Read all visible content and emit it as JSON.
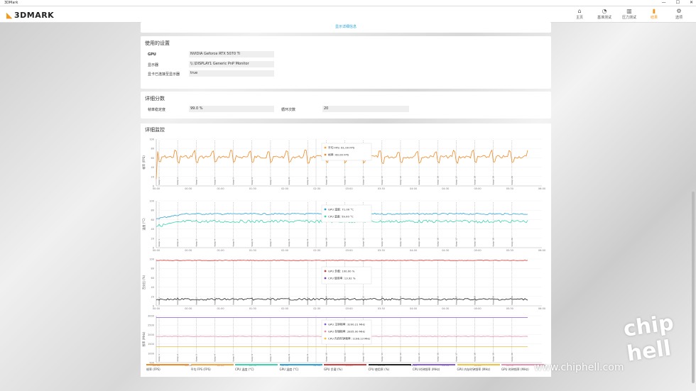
{
  "window": {
    "title": "3DMark",
    "controls": [
      "—",
      "☐",
      "✕"
    ]
  },
  "app": {
    "logo": "3DMARK"
  },
  "nav": {
    "items": [
      {
        "label": "主页",
        "icon": "home-icon",
        "glyph": "⌂"
      },
      {
        "label": "基准测试",
        "icon": "gauge-icon",
        "glyph": "◔"
      },
      {
        "label": "压力测试",
        "icon": "bars-icon",
        "glyph": "▥"
      },
      {
        "label": "结果",
        "icon": "results-icon",
        "glyph": "▮"
      },
      {
        "label": "选项",
        "icon": "gear-icon",
        "glyph": "⚙"
      }
    ],
    "active_index": 3
  },
  "detail_link": "显示详细信息",
  "settings": {
    "title": "使用的设置",
    "rows": [
      {
        "label": "GPU",
        "value": "NVIDIA Geforce RTX 5070 Ti"
      },
      {
        "label": "显示器",
        "value": "\\\\.\\DISPLAY1 Generic PnP Monitor"
      },
      {
        "label": "显卡已连接至显示器",
        "value": "true"
      }
    ]
  },
  "scores": {
    "title": "详细分数",
    "items": [
      {
        "label": "帧率稳定度",
        "value": "99.0 %"
      },
      {
        "label": "循环次数",
        "value": "20"
      }
    ]
  },
  "monitor": {
    "title": "详细监控",
    "charts": [
      {
        "ylabel": "帧率 (FPS)",
        "tooltip": [
          {
            "label": "平均 FPS:",
            "value": "61.00 FPS",
            "color": "#f5a33a"
          },
          {
            "label": "帧率:",
            "value": "60.00 FPS",
            "color": "#f08a24"
          }
        ],
        "yticks": [
          "100",
          "80",
          "60",
          "40",
          "20",
          "0"
        ]
      },
      {
        "ylabel": "温度 (°C)",
        "tooltip": [
          {
            "label": "GPU 温度:",
            "value": "71.00 °C",
            "color": "#2aa3d9"
          },
          {
            "label": "CPU 温度:",
            "value": "59.00 °C",
            "color": "#39d3b0"
          }
        ],
        "yticks": [
          "100",
          "80",
          "60",
          "40",
          "20",
          "0"
        ]
      },
      {
        "ylabel": "百分比 (%)",
        "tooltip": [
          {
            "label": "GPU 负载:",
            "value": "100.00 %",
            "color": "#d23b3b"
          },
          {
            "label": "CPU 使用率:",
            "value": "13.92 %",
            "color": "#7a3fb5"
          }
        ],
        "yticks": [
          "100",
          "80",
          "60",
          "40",
          "20",
          "0"
        ]
      },
      {
        "ylabel": "频率 (MHz)",
        "tooltip": [
          {
            "label": "GPU 主钟频率:",
            "value": "3200.21 MHz",
            "color": "#8a5ad6"
          },
          {
            "label": "GPU 存储频率:",
            "value": "2835.00 MHz",
            "color": "#e98fb0"
          },
          {
            "label": "CPU 内存时钟频率:",
            "value": "1198.13 MHz",
            "color": "#f0c040"
          }
        ],
        "yticks": [
          "3000",
          "2500",
          "2000",
          "1500",
          "1000",
          "500"
        ]
      }
    ],
    "xticks": [
      "00:00",
      "00:30",
      "01:00",
      "01:30",
      "02:00",
      "02:30",
      "03:00",
      "03:30",
      "04:00",
      "04:30",
      "05:00",
      "05:30",
      "06:00"
    ],
    "markers": [
      "Loop 1",
      "Loop 2",
      "Loop 3",
      "Loop 4",
      "Loop 5",
      "Loop 6",
      "Loop 7",
      "Loop 8",
      "Loop 9",
      "Loop 10",
      "Loop 11",
      "Loop 12",
      "Loop 13",
      "Loop 14",
      "Loop 15",
      "Loop 16",
      "Loop 17",
      "Loop 18",
      "Loop 19",
      "Loop 20"
    ]
  },
  "legend": [
    {
      "label": "帧率 (FPS)",
      "color": "#f08a24"
    },
    {
      "label": "平均 FPS (FPS)",
      "color": "#f5a33a"
    },
    {
      "label": "CPU 温度 (°C)",
      "color": "#39d3b0"
    },
    {
      "label": "GPU 温度 (°C)",
      "color": "#2aa3d9"
    },
    {
      "label": "GPU 负载 (%)",
      "color": "#d23b3b"
    },
    {
      "label": "CPU 使用率 (%)",
      "color": "#222222"
    },
    {
      "label": "CPU 时钟频率 (MHz)",
      "color": "#8a5ad6"
    },
    {
      "label": "GPU 内存时钟频率 (MHz)",
      "color": "#f0c040"
    },
    {
      "label": "GPU 时钟频率 (MHz)",
      "color": "#e98fb0"
    }
  ],
  "watermark": "www.chiphell.com",
  "brand": "chip hell"
}
